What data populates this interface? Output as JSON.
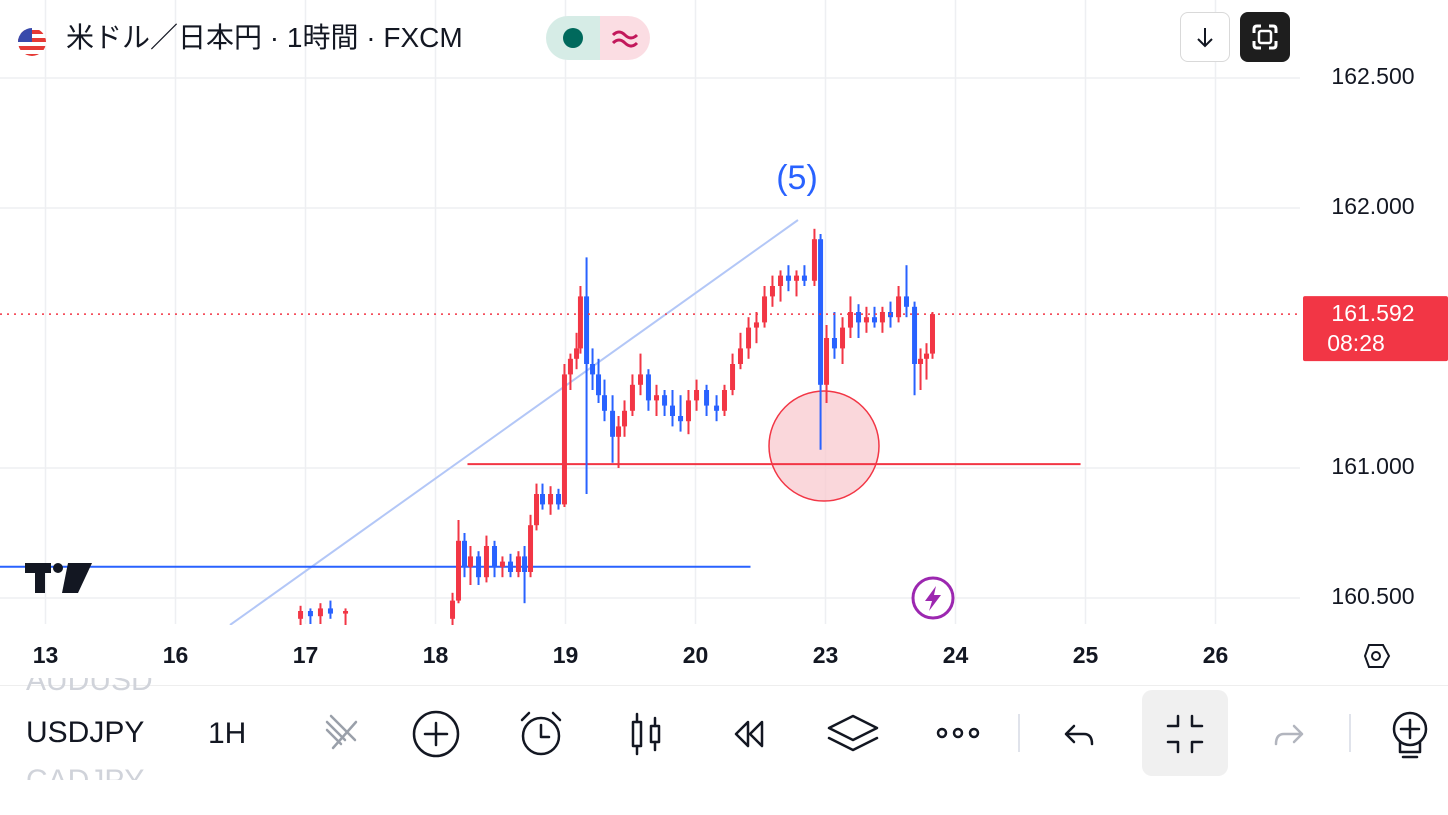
{
  "header": {
    "title": "米ドル／日本円 · 1時間 · FXCM"
  },
  "chart_data": {
    "type": "candlestick",
    "x": [
      1.962,
      2.038,
      2.115,
      2.192,
      2.308,
      3.131,
      3.177,
      3.223,
      3.269,
      3.331,
      3.392,
      3.454,
      3.515,
      3.577,
      3.638,
      3.685,
      3.731,
      3.777,
      3.823,
      3.885,
      3.946,
      3.992,
      4.038,
      4.085,
      4.115,
      4.162,
      4.208,
      4.254,
      4.3,
      4.362,
      4.408,
      4.454,
      4.515,
      4.577,
      4.638,
      4.7,
      4.762,
      4.823,
      4.885,
      4.946,
      5.008,
      5.085,
      5.162,
      5.223,
      5.285,
      5.346,
      5.408,
      5.469,
      5.531,
      5.592,
      5.654,
      5.715,
      5.777,
      5.838,
      5.915,
      5.962,
      6.008,
      6.069,
      6.131,
      6.192,
      6.254,
      6.315,
      6.377,
      6.438,
      6.5,
      6.562,
      6.623,
      6.685,
      6.731,
      6.777,
      6.823
    ],
    "open": [
      160.42,
      160.45,
      160.43,
      160.46,
      160.44,
      160.42,
      160.49,
      160.72,
      160.62,
      160.66,
      160.58,
      160.7,
      160.62,
      160.64,
      160.6,
      160.66,
      160.6,
      160.78,
      160.9,
      160.86,
      160.9,
      160.86,
      161.36,
      161.42,
      161.46,
      161.66,
      161.4,
      161.36,
      161.28,
      161.22,
      161.12,
      161.16,
      161.22,
      161.32,
      161.36,
      161.26,
      161.28,
      161.24,
      161.2,
      161.18,
      161.26,
      161.3,
      161.24,
      161.22,
      161.3,
      161.4,
      161.46,
      161.54,
      161.56,
      161.66,
      161.7,
      161.74,
      161.72,
      161.74,
      161.72,
      161.88,
      161.32,
      161.5,
      161.46,
      161.54,
      161.6,
      161.56,
      161.58,
      161.56,
      161.6,
      161.58,
      161.66,
      161.62,
      161.4,
      161.42,
      161.44
    ],
    "high": [
      160.47,
      160.46,
      160.48,
      160.49,
      160.46,
      160.52,
      160.8,
      160.75,
      160.7,
      160.68,
      160.74,
      160.72,
      160.66,
      160.67,
      160.68,
      160.7,
      160.82,
      160.94,
      160.94,
      160.93,
      160.92,
      161.4,
      161.44,
      161.52,
      161.7,
      161.81,
      161.46,
      161.42,
      161.34,
      161.28,
      161.2,
      161.26,
      161.36,
      161.44,
      161.38,
      161.32,
      161.3,
      161.3,
      161.28,
      161.3,
      161.34,
      161.32,
      161.28,
      161.32,
      161.44,
      161.52,
      161.58,
      161.6,
      161.7,
      161.74,
      161.76,
      161.78,
      161.76,
      161.78,
      161.92,
      161.9,
      161.55,
      161.6,
      161.58,
      161.66,
      161.63,
      161.62,
      161.62,
      161.62,
      161.64,
      161.7,
      161.78,
      161.64,
      161.46,
      161.48,
      161.6
    ],
    "low": [
      160.38,
      160.4,
      160.4,
      160.42,
      160.38,
      160.38,
      160.48,
      160.58,
      160.55,
      160.55,
      160.56,
      160.58,
      160.58,
      160.58,
      160.58,
      160.48,
      160.58,
      160.76,
      160.84,
      160.82,
      160.84,
      160.85,
      161.3,
      161.38,
      161.44,
      160.9,
      161.3,
      161.25,
      161.18,
      161.02,
      161.0,
      161.12,
      161.2,
      161.28,
      161.22,
      161.2,
      161.2,
      161.16,
      161.14,
      161.13,
      161.22,
      161.2,
      161.18,
      161.2,
      161.28,
      161.38,
      161.42,
      161.48,
      161.54,
      161.62,
      161.64,
      161.68,
      161.66,
      161.7,
      161.7,
      161.07,
      161.25,
      161.42,
      161.4,
      161.5,
      161.5,
      161.52,
      161.54,
      161.52,
      161.54,
      161.56,
      161.58,
      161.28,
      161.3,
      161.34,
      161.42
    ],
    "close": [
      160.45,
      160.43,
      160.46,
      160.44,
      160.45,
      160.49,
      160.72,
      160.62,
      160.66,
      160.58,
      160.7,
      160.62,
      160.64,
      160.6,
      160.66,
      160.6,
      160.78,
      160.9,
      160.86,
      160.9,
      160.86,
      161.36,
      161.42,
      161.46,
      161.66,
      161.4,
      161.36,
      161.28,
      161.22,
      161.12,
      161.16,
      161.22,
      161.32,
      161.36,
      161.26,
      161.28,
      161.24,
      161.2,
      161.18,
      161.26,
      161.3,
      161.24,
      161.22,
      161.3,
      161.4,
      161.46,
      161.54,
      161.56,
      161.66,
      161.7,
      161.74,
      161.72,
      161.74,
      161.72,
      161.88,
      161.32,
      161.5,
      161.46,
      161.54,
      161.6,
      161.56,
      161.58,
      161.56,
      161.6,
      161.58,
      161.66,
      161.62,
      161.4,
      161.42,
      161.44,
      161.592
    ],
    "up_color": "#f23645",
    "down_color": "#2962ff",
    "xlim": [
      -0.35,
      9.65
    ],
    "ylim": [
      160.4,
      162.8
    ],
    "xticks": [
      {
        "value": 0,
        "label": "13"
      },
      {
        "value": 1,
        "label": "16"
      },
      {
        "value": 2,
        "label": "17"
      },
      {
        "value": 3,
        "label": "18"
      },
      {
        "value": 4,
        "label": "19"
      },
      {
        "value": 5,
        "label": "20"
      },
      {
        "value": 6,
        "label": "23"
      },
      {
        "value": 7,
        "label": "24"
      },
      {
        "value": 8,
        "label": "25"
      },
      {
        "value": 9,
        "label": "26"
      }
    ],
    "yticks": [
      {
        "value": 160.5,
        "label": "160.500"
      },
      {
        "value": 161,
        "label": "161.000"
      },
      {
        "value": 162,
        "label": "162.000"
      },
      {
        "value": 162.5,
        "label": "162.500"
      }
    ],
    "grid": true,
    "last_price": 161.592,
    "countdown": "08:28",
    "horizontal_lines": [
      {
        "value": 160.62,
        "color": "#2962ff",
        "x": [
          -0.35,
          5.423
        ]
      },
      {
        "value": 161.015,
        "color": "#f23645",
        "x": [
          3.246,
          7.962
        ]
      }
    ],
    "wave_label": "(5)"
  },
  "toolbar": {
    "symbols": [
      "AUDUSD",
      "USDJPY",
      "CADJPY"
    ],
    "interval": "1H"
  }
}
